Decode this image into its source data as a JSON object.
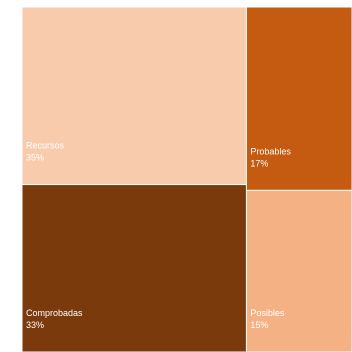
{
  "chart_data": {
    "type": "treemap",
    "title": "",
    "items": [
      {
        "label": "Recursos",
        "value": 35,
        "value_label": "35%",
        "color": "#f7cbac"
      },
      {
        "label": "Comprobadas",
        "value": 33,
        "value_label": "33%",
        "color": "#7b3a0c"
      },
      {
        "label": "Probables",
        "value": 17,
        "value_label": "17%",
        "color": "#c55a11"
      },
      {
        "label": "Posibles",
        "value": 15,
        "value_label": "15%",
        "color": "#f4b183"
      }
    ]
  }
}
